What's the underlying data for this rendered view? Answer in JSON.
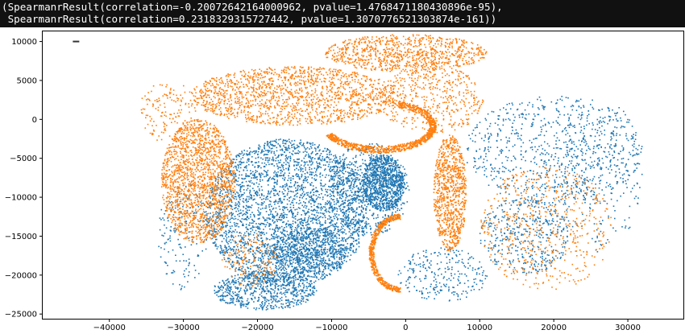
{
  "cell_output": {
    "line1": "(SpearmanrResult(correlation=-0.20072642164000962, pvalue=1.4768471180430896e-95),",
    "line2": " SpearmanrResult(correlation=0.2318329315727442, pvalue=1.3070776521303874e-161))"
  },
  "chart_data": {
    "type": "scatter",
    "xlim": [
      -49000,
      37500
    ],
    "ylim": [
      -25600,
      11300
    ],
    "x_ticks": [
      -40000,
      -30000,
      -20000,
      -10000,
      0,
      10000,
      20000,
      30000
    ],
    "x_tick_labels": [
      "−40000",
      "−30000",
      "−20000",
      "−10000",
      "0",
      "10000",
      "20000",
      "30000"
    ],
    "y_ticks": [
      10000,
      5000,
      0,
      -5000,
      -10000,
      -15000,
      -20000,
      -25000
    ],
    "y_tick_labels": [
      "10000",
      "5000",
      "0",
      "−5000",
      "−10000",
      "−15000",
      "−20000",
      "−25000"
    ],
    "grid": false,
    "legend": "none",
    "marker_size": "tiny",
    "series": [
      {
        "color": "#1f77b4",
        "regions": [
          {
            "cx": -16000,
            "cy": -12000,
            "rx": 11000,
            "ry": 9500,
            "n": 3200
          },
          {
            "cx": -5000,
            "cy": -9000,
            "rx": 5500,
            "ry": 6000,
            "n": 600
          },
          {
            "cx": -3000,
            "cy": -8200,
            "rx": 2800,
            "ry": 3600,
            "n": 900
          },
          {
            "cx": -19000,
            "cy": -22000,
            "rx": 7000,
            "ry": 2500,
            "n": 700
          },
          {
            "cx": -13000,
            "cy": -17000,
            "rx": 5000,
            "ry": 3000,
            "n": 600
          },
          {
            "cx": 20000,
            "cy": -4000,
            "rx": 12000,
            "ry": 7000,
            "n": 800
          },
          {
            "cx": 16000,
            "cy": -15000,
            "rx": 6000,
            "ry": 5000,
            "n": 400
          },
          {
            "cx": -30000,
            "cy": -15000,
            "rx": 3500,
            "ry": 7000,
            "n": 150
          },
          {
            "cx": 5000,
            "cy": -20000,
            "rx": 6000,
            "ry": 3500,
            "n": 250
          },
          {
            "cx": 26000,
            "cy": -7000,
            "rx": 6000,
            "ry": 10000,
            "n": 200
          }
        ],
        "points": [
          [
            -44500,
            10000
          ]
        ]
      },
      {
        "color": "#ff7f0e",
        "regions": [
          {
            "cx": -28000,
            "cy": -8000,
            "rx": 5000,
            "ry": 8000,
            "n": 1700
          },
          {
            "cx": -15000,
            "cy": 3000,
            "rx": 14000,
            "ry": 3800,
            "n": 1500
          },
          {
            "cx": 0,
            "cy": 8500,
            "rx": 11000,
            "ry": 2400,
            "n": 900
          },
          {
            "cx": 6000,
            "cy": -9500,
            "rx": 2200,
            "ry": 7500,
            "n": 900
          },
          {
            "cx": 3500,
            "cy": 2500,
            "rx": 7000,
            "ry": 4500,
            "n": 450
          },
          {
            "cx": 19000,
            "cy": -14000,
            "rx": 9000,
            "ry": 8000,
            "n": 550
          },
          {
            "cx": -32000,
            "cy": 1000,
            "rx": 4000,
            "ry": 4000,
            "n": 150
          },
          {
            "cx": -21000,
            "cy": -18000,
            "rx": 4000,
            "ry": 3500,
            "n": 150
          }
        ],
        "arcs": [
          {
            "cx": -3500,
            "cy": -900,
            "rx": 7200,
            "ry": 3000,
            "from": 200,
            "to": 430,
            "width": 900,
            "n": 900
          },
          {
            "cx": -700,
            "cy": -17200,
            "rx": 3900,
            "ry": 4700,
            "from": 90,
            "to": 270,
            "width": 700,
            "n": 550
          }
        ]
      }
    ]
  }
}
